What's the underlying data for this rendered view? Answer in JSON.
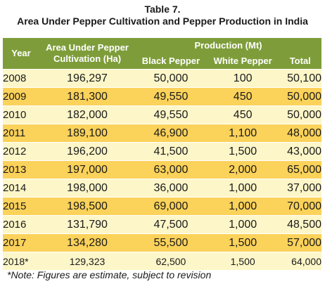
{
  "title_line1": "Table 7.",
  "title_line2": "Area Under Pepper Cultivation and Pepper Production in India",
  "headers": {
    "year": "Year",
    "area_line1": "Area Under Pepper",
    "area_line2": "Cultivation (Ha)",
    "production": "Production (Mt)",
    "black": "Black Pepper",
    "white": "White Pepper",
    "total": "Total"
  },
  "rows": [
    {
      "year": "2008",
      "area": "196,297",
      "black": "50,000",
      "white": "100",
      "total": "50,100"
    },
    {
      "year": "2009",
      "area": "181,300",
      "black": "49,550",
      "white": "450",
      "total": "50,000"
    },
    {
      "year": "2010",
      "area": "182,000",
      "black": "49,550",
      "white": "450",
      "total": "50,000"
    },
    {
      "year": "2011",
      "area": "189,100",
      "black": "46,900",
      "white": "1,100",
      "total": "48,000"
    },
    {
      "year": "2012",
      "area": "196,200",
      "black": "41,500",
      "white": "1,500",
      "total": "43,000"
    },
    {
      "year": "2013",
      "area": "197,000",
      "black": "63,000",
      "white": "2,000",
      "total": "65,000"
    },
    {
      "year": "2014",
      "area": "198,000",
      "black": "36,000",
      "white": "1,000",
      "total": "37,000"
    },
    {
      "year": "2015",
      "area": "198,500",
      "black": "69,000",
      "white": "1,000",
      "total": "70,000"
    },
    {
      "year": "2016",
      "area": "131,790",
      "black": "47,500",
      "white": "1,000",
      "total": "48,500"
    },
    {
      "year": "2017",
      "area": "134,280",
      "black": "55,500",
      "white": "1,500",
      "total": "57,000"
    },
    {
      "year": "2018*",
      "area": "129,323",
      "black": "62,500",
      "white": "1,500",
      "total": "64,000"
    }
  ],
  "note": "*Note: Figures are estimate, subject to revision",
  "colors": {
    "header": "#7e9d3a",
    "row_light": "#fdf6c8",
    "row_dark": "#fbd25a"
  }
}
